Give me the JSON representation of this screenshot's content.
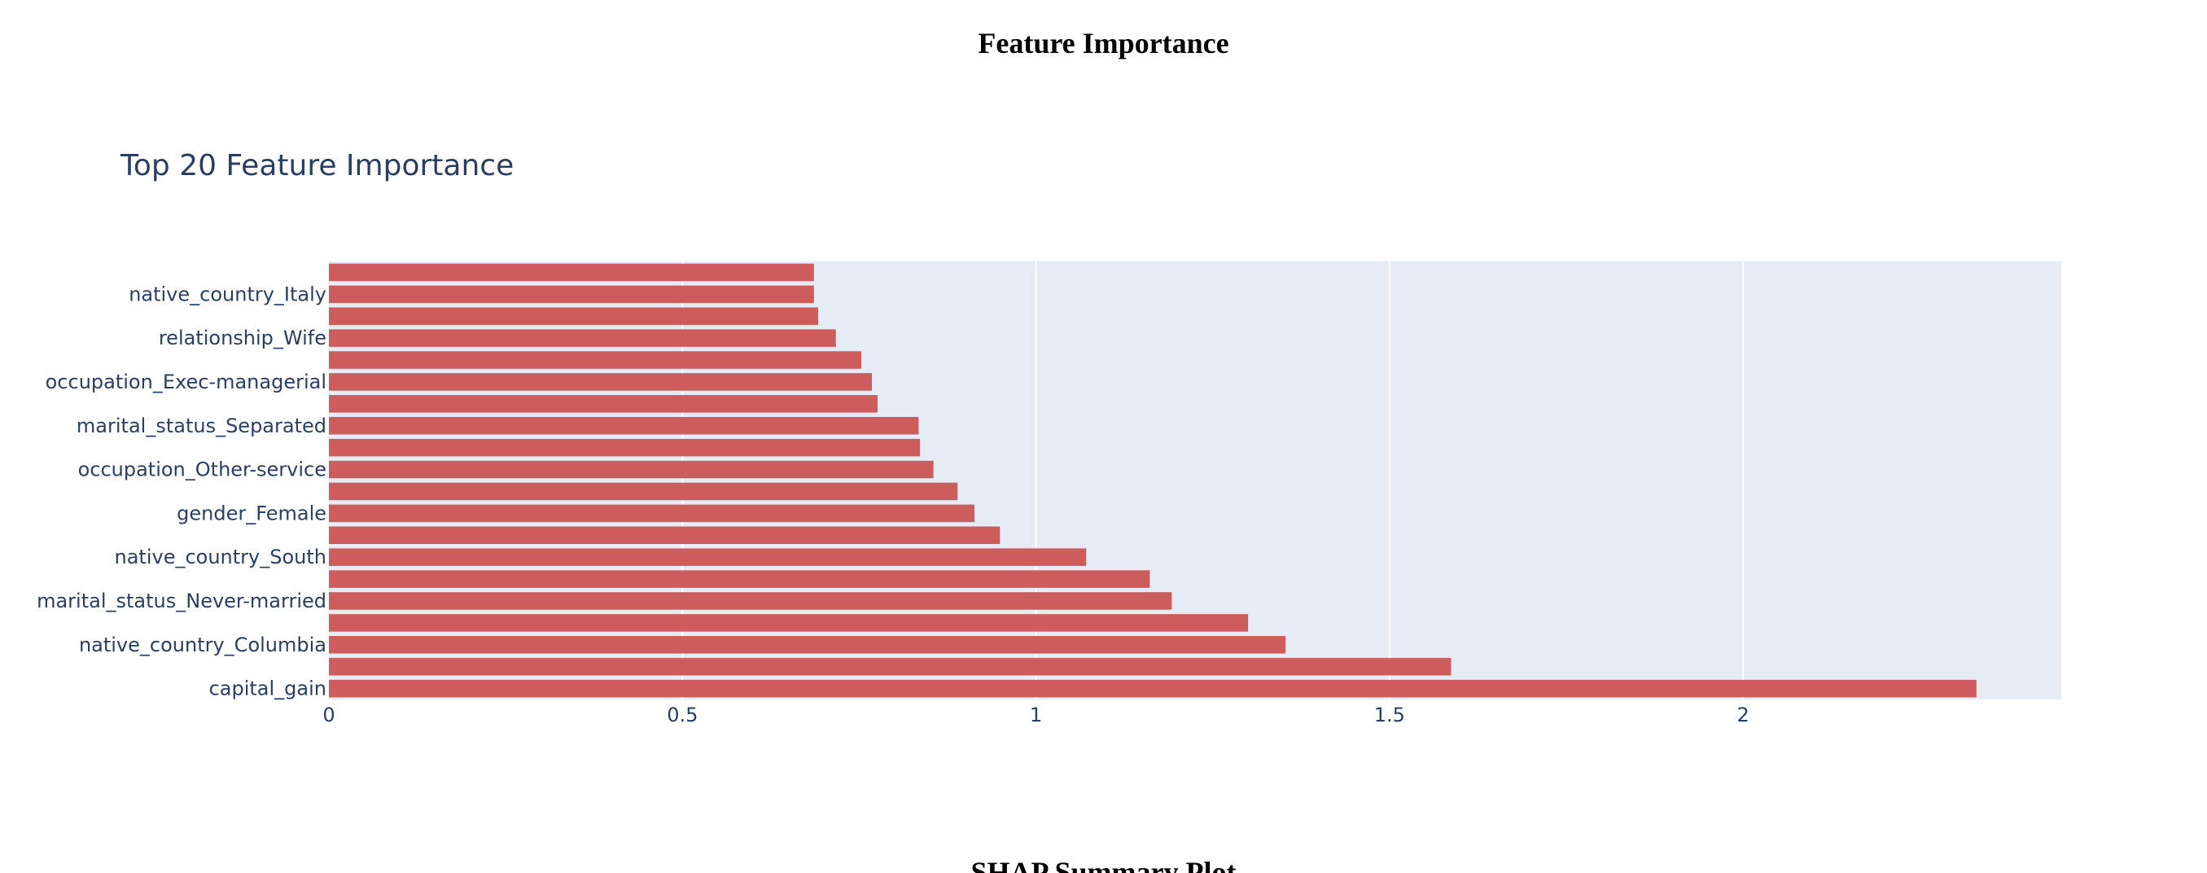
{
  "page": {
    "title": "Feature Importance",
    "next_section_title": "SHAP Summary Plot"
  },
  "colors": {
    "bar": "#cd5c5c",
    "plot_background": "#e5ecf6",
    "gridline": "#ffffff",
    "text": "#2a3f5f"
  },
  "chart_data": {
    "type": "bar",
    "orientation": "horizontal",
    "title": "Top 20 Feature Importance",
    "xlabel": "",
    "ylabel": "",
    "xlim": [
      0,
      2.45
    ],
    "xticks": [
      0,
      0.5,
      1,
      1.5,
      2
    ],
    "xtick_labels": [
      "0",
      "0.5",
      "1",
      "1.5",
      "2"
    ],
    "grid": true,
    "legend": "none",
    "categories": [
      "capital_gain",
      "",
      "native_country_Columbia",
      "",
      "marital_status_Never-married",
      "",
      "native_country_South",
      "",
      "gender_Female",
      "",
      "occupation_Other-service",
      "",
      "marital_status_Separated",
      "",
      "occupation_Exec-managerial",
      "",
      "relationship_Wife",
      "",
      "native_country_Italy",
      ""
    ],
    "values": [
      2.33,
      1.587,
      1.353,
      1.3,
      1.192,
      1.161,
      1.071,
      0.949,
      0.913,
      0.889,
      0.855,
      0.836,
      0.834,
      0.776,
      0.768,
      0.753,
      0.717,
      0.692,
      0.686,
      0.686
    ]
  }
}
